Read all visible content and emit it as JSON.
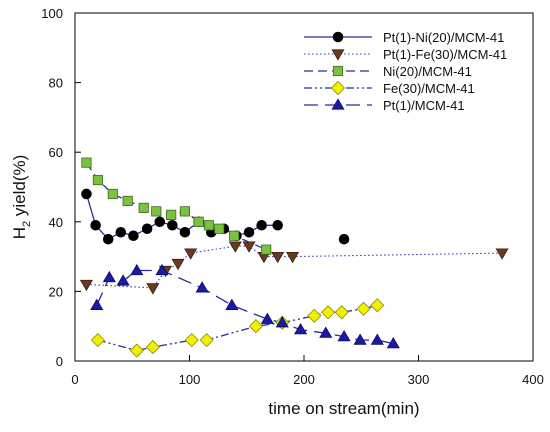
{
  "chart_data": {
    "type": "line",
    "xlabel": "time on stream(min)",
    "ylabel_main": "H",
    "ylabel_sub": "2",
    "ylabel_rest": " yield(%)",
    "xlim": [
      0,
      400
    ],
    "ylim": [
      0,
      100
    ],
    "xticks": [
      0,
      100,
      200,
      300,
      400
    ],
    "yticks": [
      0,
      20,
      40,
      60,
      80,
      100
    ],
    "grid": false,
    "legend_position": "top-right",
    "series": [
      {
        "name": "Pt(1)-Ni(20)/MCM-41",
        "line_style": "solid",
        "marker": "circle",
        "marker_color": "#000000",
        "line_color": "#2b2b9a",
        "points": [
          [
            10,
            48
          ],
          [
            18,
            39
          ],
          [
            29,
            35
          ],
          [
            40,
            37
          ],
          [
            51,
            36
          ],
          [
            63,
            38
          ],
          [
            74,
            40
          ],
          [
            85,
            39
          ],
          [
            96,
            37
          ],
          [
            108,
            40
          ],
          [
            119,
            37
          ],
          [
            130,
            38
          ],
          [
            141,
            36
          ],
          [
            152,
            37
          ],
          [
            163,
            39
          ],
          [
            177,
            39
          ]
        ],
        "extra_points": [
          [
            235,
            35
          ]
        ]
      },
      {
        "name": "Pt(1)-Fe(30)/MCM-41",
        "line_style": "dotted",
        "marker": "triangle-down",
        "marker_color": "#6b3a1e",
        "line_color": "#3a3aa0",
        "points": [
          [
            10,
            22
          ],
          [
            68,
            21
          ],
          [
            79,
            26
          ],
          [
            90,
            28
          ],
          [
            101,
            31
          ],
          [
            140,
            33
          ],
          [
            152,
            33
          ],
          [
            165,
            30
          ],
          [
            177,
            30
          ],
          [
            190,
            30
          ],
          [
            373,
            31
          ]
        ]
      },
      {
        "name": "Ni(20)/MCM-41",
        "line_style": "dashed",
        "marker": "square",
        "marker_color": "#7ac142",
        "line_color": "#2b2b9a",
        "points": [
          [
            10,
            57
          ],
          [
            20,
            52
          ],
          [
            33,
            48
          ],
          [
            46,
            46
          ],
          [
            60,
            44
          ],
          [
            71,
            43
          ],
          [
            84,
            42
          ],
          [
            96,
            43
          ],
          [
            108,
            40
          ],
          [
            117,
            39
          ],
          [
            126,
            38
          ],
          [
            139,
            36
          ],
          [
            167,
            32
          ]
        ]
      },
      {
        "name": "Fe(30)/MCM-41",
        "line_style": "dash-dot-dot",
        "marker": "diamond",
        "marker_color": "#f0f000",
        "line_color": "#2b2b9a",
        "points": [
          [
            20,
            6
          ],
          [
            54,
            3
          ],
          [
            68,
            4
          ],
          [
            102,
            6
          ],
          [
            115,
            6
          ],
          [
            158,
            10
          ],
          [
            181,
            11
          ],
          [
            209,
            13
          ],
          [
            221,
            14
          ],
          [
            233,
            14
          ],
          [
            252,
            15
          ],
          [
            264,
            16
          ]
        ]
      },
      {
        "name": "Pt(1)/MCM-41",
        "line_style": "long-dash",
        "marker": "triangle-up",
        "marker_color": "#1a1aa8",
        "line_color": "#2b2b9a",
        "points": [
          [
            19,
            16
          ],
          [
            30,
            24
          ],
          [
            42,
            23
          ],
          [
            54,
            26
          ],
          [
            76,
            26
          ],
          [
            111,
            21
          ],
          [
            137,
            16
          ],
          [
            168,
            12
          ],
          [
            181,
            11
          ],
          [
            197,
            9
          ],
          [
            219,
            8
          ],
          [
            235,
            7
          ],
          [
            249,
            6
          ],
          [
            264,
            6
          ],
          [
            278,
            5
          ]
        ]
      }
    ]
  }
}
